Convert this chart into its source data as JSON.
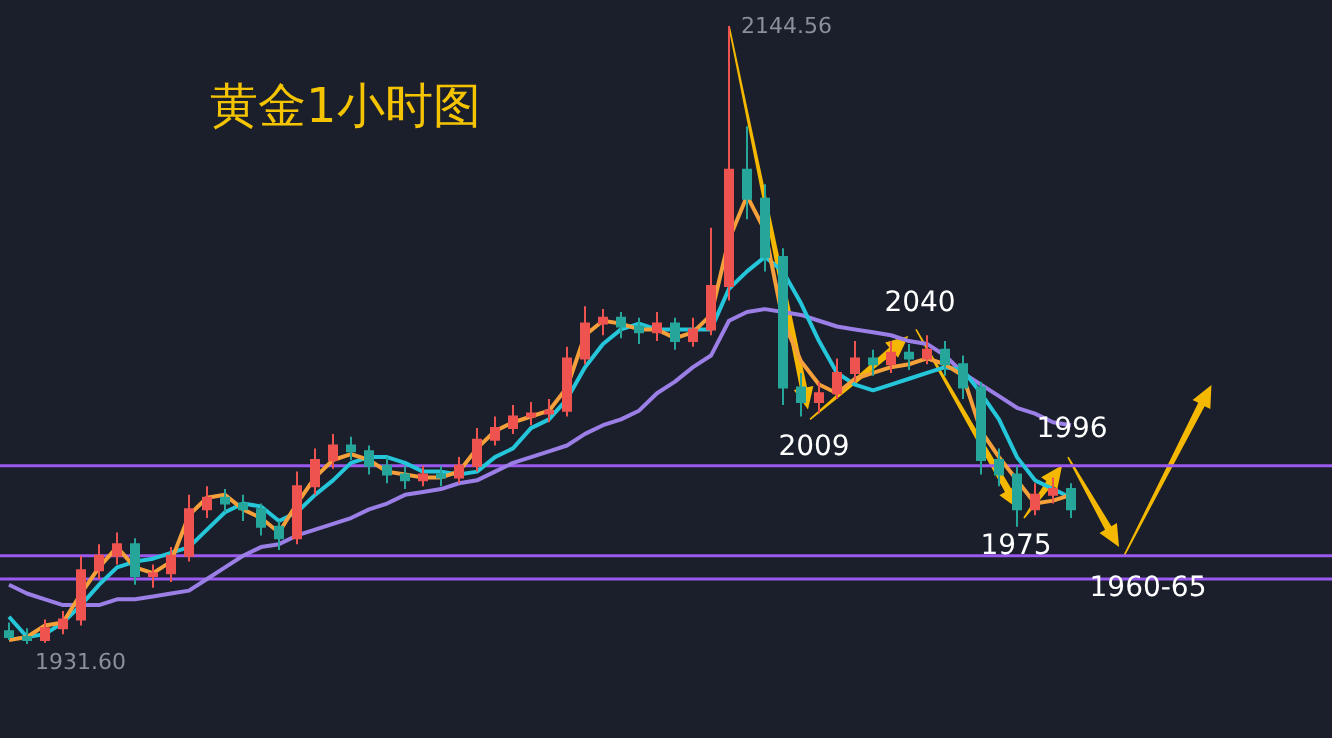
{
  "chart_data": {
    "type": "candlestick",
    "title": "黄金1小时图",
    "tick_labels": false,
    "marker": "none",
    "categories": [
      null,
      null,
      null,
      null,
      null,
      null,
      null,
      null,
      null,
      null,
      null,
      null,
      null,
      null,
      null,
      null,
      null,
      null,
      null,
      null,
      null,
      null,
      null,
      null,
      null,
      null,
      null,
      null,
      null,
      null,
      null,
      null,
      null,
      null,
      null,
      null,
      null,
      null,
      null,
      null,
      null,
      null,
      null,
      null,
      null,
      null,
      null,
      null,
      null,
      null,
      null,
      null,
      null,
      null,
      null,
      null,
      null,
      null,
      null,
      null
    ],
    "ohlc": [
      [
        1936,
        1939,
        1933,
        1934
      ],
      [
        1934,
        1937,
        1931.6,
        1933
      ],
      [
        1933,
        1940,
        1932,
        1937
      ],
      [
        1937,
        1943,
        1935,
        1940
      ],
      [
        1940,
        1962,
        1938,
        1957
      ],
      [
        1957,
        1966,
        1954,
        1962
      ],
      [
        1962,
        1970,
        1959,
        1966
      ],
      [
        1966,
        1968,
        1952,
        1955
      ],
      [
        1955,
        1959,
        1951,
        1956
      ],
      [
        1956,
        1965,
        1953,
        1962
      ],
      [
        1962,
        1983,
        1960,
        1978
      ],
      [
        1978,
        1986,
        1975,
        1982
      ],
      [
        1982,
        1985,
        1977,
        1980
      ],
      [
        1980,
        1983,
        1974,
        1978
      ],
      [
        1978,
        1980,
        1969,
        1972
      ],
      [
        1972,
        1974,
        1964,
        1968
      ],
      [
        1968,
        1991,
        1966,
        1986
      ],
      [
        1986,
        1999,
        1983,
        1995
      ],
      [
        1995,
        2004,
        1992,
        2000
      ],
      [
        2000,
        2003,
        1995,
        1998
      ],
      [
        1998,
        2000,
        1990,
        1993
      ],
      [
        1993,
        1996,
        1987,
        1990
      ],
      [
        1990,
        1993,
        1985,
        1988
      ],
      [
        1988,
        1993,
        1986,
        1990
      ],
      [
        1990,
        1993,
        1986,
        1989
      ],
      [
        1989,
        1996,
        1987,
        1993
      ],
      [
        1993,
        2006,
        1991,
        2002
      ],
      [
        2002,
        2010,
        2000,
        2006
      ],
      [
        2006,
        2014,
        2004,
        2010
      ],
      [
        2010,
        2015,
        2007,
        2011
      ],
      [
        2011,
        2016,
        2008,
        2012
      ],
      [
        2012,
        2034,
        2010,
        2030
      ],
      [
        2030,
        2048,
        2028,
        2042
      ],
      [
        2042,
        2047,
        2038,
        2044
      ],
      [
        2044,
        2046,
        2037,
        2041
      ],
      [
        2041,
        2044,
        2035,
        2039
      ],
      [
        2039,
        2046,
        2036,
        2042
      ],
      [
        2042,
        2044,
        2033,
        2036
      ],
      [
        2036,
        2044,
        2034,
        2040
      ],
      [
        2040,
        2075,
        2038,
        2055
      ],
      [
        2055,
        2144.56,
        2050,
        2095
      ],
      [
        2095,
        2110,
        2078,
        2085
      ],
      [
        2085,
        2090,
        2060,
        2065
      ],
      [
        2065,
        2068,
        2014,
        2020
      ],
      [
        2020,
        2025,
        2010,
        2015
      ],
      [
        2015,
        2022,
        2011,
        2018
      ],
      [
        2018,
        2030,
        2016,
        2025
      ],
      [
        2025,
        2036,
        2022,
        2030
      ],
      [
        2030,
        2033,
        2024,
        2028
      ],
      [
        2028,
        2036,
        2025,
        2032
      ],
      [
        2032,
        2035,
        2026,
        2030
      ],
      [
        2030,
        2038,
        2028,
        2033
      ],
      [
        2033,
        2036,
        2024,
        2028
      ],
      [
        2028,
        2031,
        2016,
        2020
      ],
      [
        2020,
        2022,
        1990,
        1995
      ],
      [
        1995,
        1999,
        1986,
        1990
      ],
      [
        1990,
        1993,
        1972,
        1978
      ],
      [
        1978,
        1987,
        1976,
        1983
      ],
      [
        1983,
        1989,
        1980,
        1985
      ],
      [
        1985,
        1987,
        1975,
        1978
      ]
    ],
    "series": [
      {
        "type": "line",
        "color": "#9b7ee6",
        "values": [
          1952,
          1949,
          1947,
          1945,
          1945,
          1945,
          1947,
          1947,
          1948,
          1949,
          1950,
          1954,
          1958,
          1962,
          1965,
          1966,
          1969,
          1971,
          1973,
          1975,
          1978,
          1980,
          1983,
          1984,
          1985,
          1987,
          1988,
          1991,
          1994,
          1996,
          1998,
          2000,
          2004,
          2007,
          2009,
          2012,
          2018,
          2022,
          2027,
          2031,
          2043,
          2046,
          2047,
          2046,
          2045,
          2043,
          2041,
          2040,
          2039,
          2038,
          2036,
          2035,
          2031,
          2025,
          2021,
          2017,
          2013,
          2011,
          2008,
          2007
        ]
      },
      {
        "type": "line",
        "color": "#26c6da",
        "values": [
          1941,
          1934,
          1935,
          1939,
          1945,
          1952,
          1958,
          1960,
          1961,
          1963,
          1965,
          1971,
          1977,
          1980,
          1979,
          1974,
          1977,
          1983,
          1988,
          1994,
          1996,
          1996,
          1994,
          1991,
          1991,
          1990,
          1991,
          1996,
          1999,
          2006,
          2009,
          2016,
          2027,
          2035,
          2040,
          2042,
          2040,
          2040,
          2040,
          2040,
          2054,
          2060,
          2065,
          2060,
          2049,
          2036,
          2025,
          2021,
          2019,
          2021,
          2023,
          2025,
          2027,
          2026,
          2018,
          2009,
          1996,
          1988,
          1985,
          1982
        ]
      },
      {
        "type": "line",
        "color": "#f5a03a",
        "values": [
          1933,
          1934,
          1938,
          1939,
          1949,
          1958,
          1965,
          1958,
          1956,
          1960,
          1976,
          1982,
          1983,
          1978,
          1975,
          1970,
          1980,
          1989,
          1995,
          1997,
          1995,
          1991,
          1990,
          1989,
          1989,
          1991,
          1999,
          2005,
          2008,
          2010,
          2012,
          2020,
          2038,
          2043,
          2042,
          2040,
          2040,
          2037,
          2039,
          2045,
          2071,
          2086,
          2074,
          2043,
          2029,
          2021,
          2018,
          2023,
          2025,
          2027,
          2028,
          2030,
          2028,
          2024,
          2005,
          1996,
          1988,
          1980,
          1981,
          1983
        ]
      }
    ],
    "ref_lines": [
      {
        "axis": "y",
        "value": 1993,
        "color": "#9b59f0"
      },
      {
        "axis": "y",
        "value": 1962,
        "color": "#9b59f0"
      },
      {
        "axis": "y",
        "value": 1954,
        "color": "#9b59f0"
      }
    ],
    "annotations": [
      "2144.56",
      "1931.60",
      {
        "text": "2009",
        "y": 2009
      },
      {
        "text": "2040",
        "y": 2040
      },
      {
        "text": "1975",
        "y": 1975
      },
      {
        "text": "1996",
        "y": 1996
      },
      {
        "text": "1960-65",
        "y": 1962
      }
    ]
  }
}
